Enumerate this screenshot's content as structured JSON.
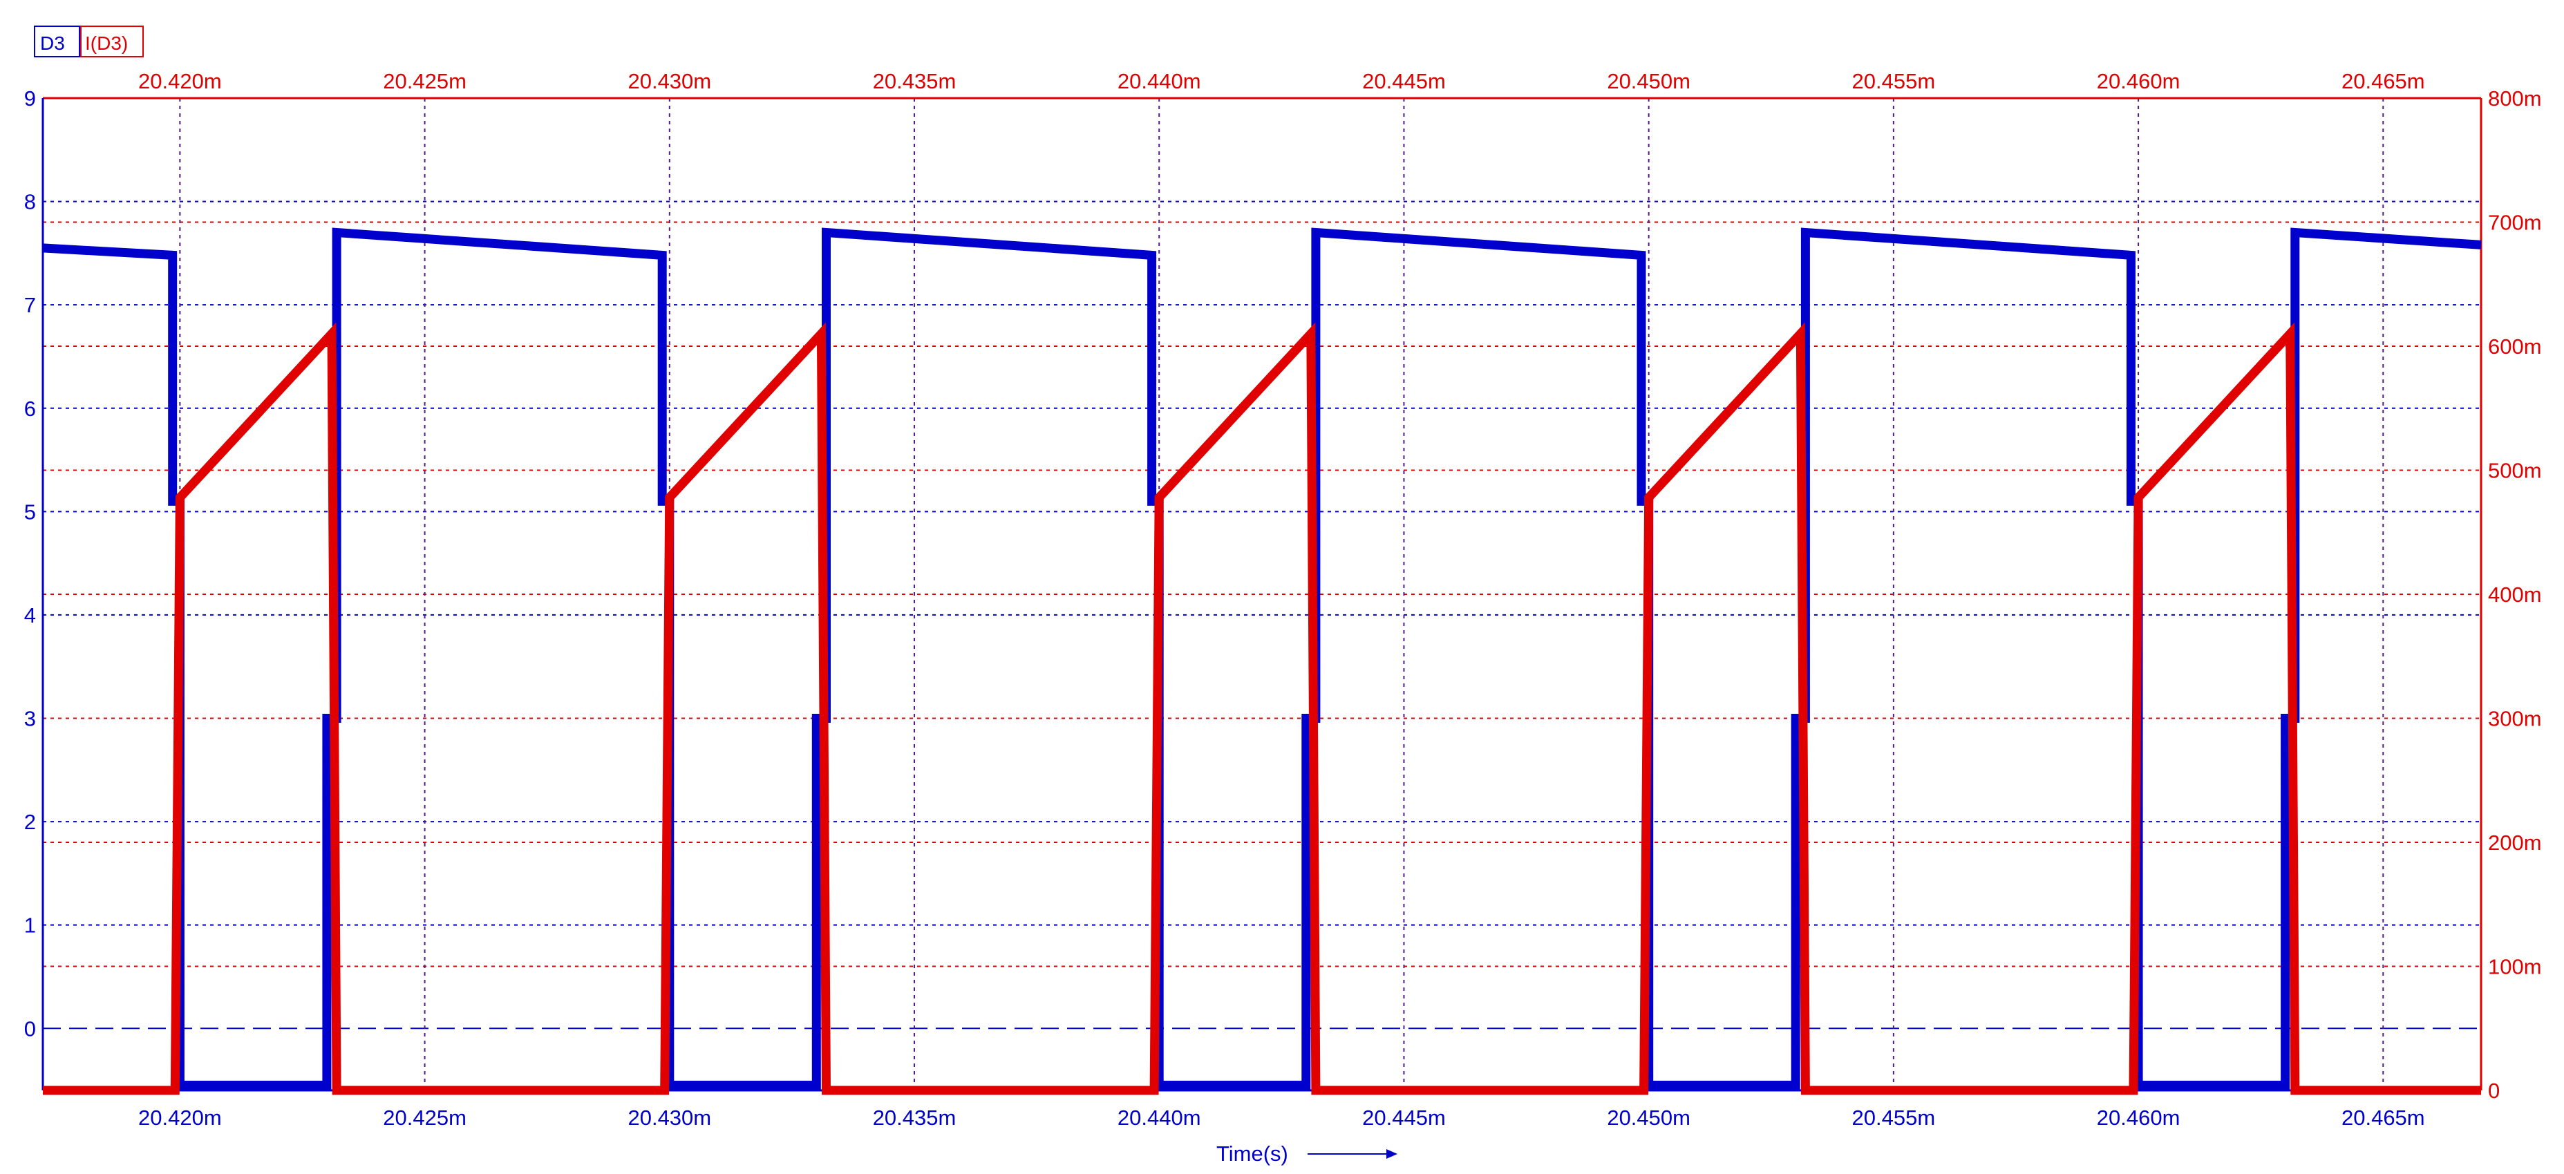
{
  "chart_data": {
    "type": "line",
    "legend": [
      {
        "name": "D3",
        "color": "#0000cc",
        "axis": "left"
      },
      {
        "name": "I(D3)",
        "color": "#e00000",
        "axis": "right"
      }
    ],
    "xlabel": "Time(s)",
    "xlim": [
      20.4172,
      20.467
    ],
    "x_unit": "m",
    "xticks": [
      "20.420m",
      "20.425m",
      "20.430m",
      "20.435m",
      "20.440m",
      "20.445m",
      "20.450m",
      "20.455m",
      "20.460m",
      "20.465m"
    ],
    "xtick_values": [
      20.42,
      20.425,
      20.43,
      20.435,
      20.44,
      20.445,
      20.45,
      20.455,
      20.46,
      20.465
    ],
    "left_axis": {
      "ylim": [
        -0.6,
        9
      ],
      "ticks": [
        "0",
        "1",
        "2",
        "3",
        "4",
        "5",
        "6",
        "7",
        "8",
        "9"
      ],
      "tick_values": [
        0,
        1,
        2,
        3,
        4,
        5,
        6,
        7,
        8,
        9
      ],
      "color": "#0000cc"
    },
    "right_axis": {
      "ylim": [
        0,
        800
      ],
      "ticks": [
        "0",
        "100m",
        "200m",
        "300m",
        "400m",
        "500m",
        "600m",
        "700m",
        "800m"
      ],
      "tick_values": [
        0,
        100,
        200,
        300,
        400,
        500,
        600,
        700,
        800
      ],
      "color": "#e00000"
    },
    "grid": true,
    "series": [
      {
        "name": "D3",
        "axis": "left",
        "color": "#0000cc",
        "x": [
          20.4172,
          20.41985,
          20.41985,
          20.42,
          20.42,
          20.423,
          20.423,
          20.4232,
          20.4232,
          20.42985,
          20.42985,
          20.43,
          20.43,
          20.433,
          20.433,
          20.4332,
          20.4332,
          20.43985,
          20.43985,
          20.44,
          20.44,
          20.443,
          20.443,
          20.4432,
          20.4432,
          20.44985,
          20.44985,
          20.45,
          20.45,
          20.453,
          20.453,
          20.4532,
          20.4532,
          20.45985,
          20.45985,
          20.46,
          20.46,
          20.463,
          20.463,
          20.4632,
          20.4632,
          20.467
        ],
        "y": [
          7.55,
          7.48,
          5.1,
          5.1,
          -0.55,
          -0.55,
          3.0,
          3.0,
          7.7,
          7.48,
          5.1,
          5.1,
          -0.55,
          -0.55,
          3.0,
          3.0,
          7.7,
          7.48,
          5.1,
          5.1,
          -0.55,
          -0.55,
          3.0,
          3.0,
          7.7,
          7.48,
          5.1,
          5.1,
          -0.55,
          -0.55,
          3.0,
          3.0,
          7.7,
          7.48,
          5.1,
          5.1,
          -0.55,
          -0.55,
          3.0,
          3.0,
          7.7,
          7.58
        ]
      },
      {
        "name": "I(D3)",
        "axis": "right",
        "color": "#e00000",
        "x": [
          20.4172,
          20.4199,
          20.42,
          20.4231,
          20.4232,
          20.4299,
          20.43,
          20.4331,
          20.4332,
          20.4399,
          20.44,
          20.4431,
          20.4432,
          20.4499,
          20.45,
          20.4531,
          20.4532,
          20.4599,
          20.46,
          20.4631,
          20.4632,
          20.467
        ],
        "y": [
          0,
          0,
          478,
          610,
          0,
          0,
          478,
          610,
          0,
          0,
          478,
          610,
          0,
          0,
          478,
          610,
          0,
          0,
          478,
          610,
          0,
          0
        ]
      }
    ]
  }
}
